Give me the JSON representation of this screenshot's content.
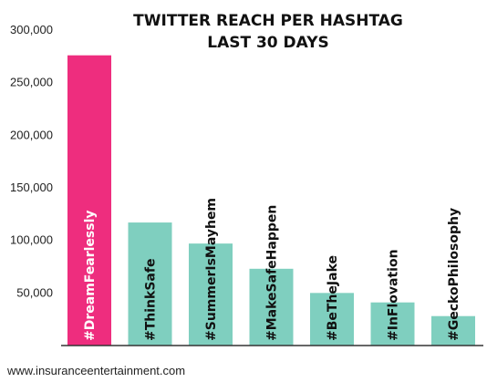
{
  "chart_data": {
    "type": "bar",
    "title_lines": [
      "TWITTER REACH PER HASHTAG",
      "LAST 30 DAYS"
    ],
    "categories": [
      "#DreamFearlessly",
      "#ThinkSafe",
      "#SummerIsMayhem",
      "#MakeSafeHappen",
      "#BeTheJake",
      "#InFlovation",
      "#GeckoPhilosophy"
    ],
    "values": [
      276000,
      117000,
      97000,
      73000,
      50000,
      41000,
      28000
    ],
    "bar_colors": [
      "#EE2D7E",
      "#7FCFBF",
      "#7FCFBF",
      "#7FCFBF",
      "#7FCFBF",
      "#7FCFBF",
      "#7FCFBF"
    ],
    "ylim": [
      0,
      300000
    ],
    "yticks": [
      50000,
      100000,
      150000,
      200000,
      250000,
      300000
    ],
    "ytick_labels": [
      "50,000",
      "100,000",
      "150,000",
      "200,000",
      "250,000",
      "300,000"
    ],
    "grid": false,
    "xlabel": "",
    "ylabel": ""
  },
  "footer": {
    "source_url": "www.insuranceentertainment.com"
  }
}
